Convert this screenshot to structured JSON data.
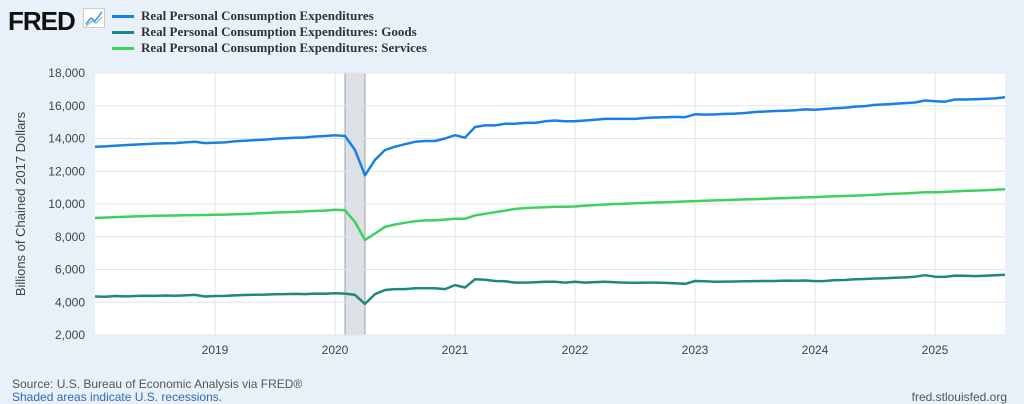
{
  "header": {
    "logo": "FRED",
    "logo_icon": "chart-line-icon"
  },
  "footer": {
    "source": "Source: U.S. Bureau of Economic Analysis via FRED®",
    "recession_note": "Shaded areas indicate U.S. recessions.",
    "site": "fred.stlouisfed.org"
  },
  "colors": {
    "total": "#1a80e4",
    "goods": "#1c8a7b",
    "services": "#3ed160",
    "recession": "#dde1e6"
  },
  "chart_data": {
    "type": "line",
    "title": "",
    "ylabel": "Billions of Chained 2017 Dollars",
    "ylim": [
      2000,
      18000
    ],
    "yticks": [
      "2,000",
      "4,000",
      "6,000",
      "8,000",
      "10,000",
      "12,000",
      "14,000",
      "16,000",
      "18,000"
    ],
    "ytick_values": [
      2000,
      4000,
      6000,
      8000,
      10000,
      12000,
      14000,
      16000,
      18000
    ],
    "xticks": [
      "2019",
      "2020",
      "2021",
      "2022",
      "2023",
      "2024",
      "2025"
    ],
    "x_start": "2018-01",
    "x_end": "2025-08",
    "frequency": "monthly",
    "recessions": [
      [
        "2020-02",
        "2020-04"
      ]
    ],
    "grid": true,
    "legend_placement": "top-left",
    "series": [
      {
        "name": "Real Personal Consumption Expenditures",
        "values": [
          13500,
          13520,
          13560,
          13600,
          13630,
          13660,
          13690,
          13710,
          13720,
          13760,
          13800,
          13720,
          13740,
          13760,
          13830,
          13860,
          13900,
          13930,
          13980,
          14020,
          14040,
          14060,
          14120,
          14150,
          14200,
          14150,
          13300,
          11750,
          12700,
          13300,
          13500,
          13650,
          13800,
          13850,
          13850,
          14000,
          14200,
          14050,
          14700,
          14800,
          14800,
          14900,
          14900,
          14950,
          14950,
          15050,
          15100,
          15050,
          15050,
          15100,
          15150,
          15200,
          15200,
          15200,
          15200,
          15250,
          15280,
          15300,
          15320,
          15300,
          15480,
          15460,
          15470,
          15500,
          15520,
          15560,
          15620,
          15650,
          15680,
          15700,
          15720,
          15780,
          15750,
          15800,
          15850,
          15880,
          15950,
          15980,
          16050,
          16080,
          16120,
          16160,
          16200,
          16320,
          16280,
          16250,
          16380,
          16380,
          16400,
          16420,
          16450,
          16520
        ]
      },
      {
        "name": "Real Personal Consumption Expenditures: Goods",
        "values": [
          4350,
          4340,
          4380,
          4360,
          4380,
          4400,
          4390,
          4410,
          4400,
          4420,
          4450,
          4350,
          4380,
          4390,
          4420,
          4440,
          4460,
          4470,
          4490,
          4500,
          4510,
          4500,
          4530,
          4520,
          4550,
          4530,
          4450,
          3900,
          4500,
          4750,
          4800,
          4800,
          4850,
          4850,
          4850,
          4800,
          5050,
          4900,
          5400,
          5380,
          5300,
          5280,
          5200,
          5200,
          5220,
          5250,
          5250,
          5200,
          5250,
          5200,
          5230,
          5250,
          5220,
          5200,
          5180,
          5200,
          5200,
          5180,
          5160,
          5120,
          5300,
          5280,
          5250,
          5260,
          5270,
          5280,
          5290,
          5300,
          5300,
          5320,
          5310,
          5330,
          5290,
          5300,
          5350,
          5360,
          5400,
          5420,
          5450,
          5460,
          5500,
          5520,
          5560,
          5650,
          5560,
          5550,
          5630,
          5620,
          5600,
          5620,
          5650,
          5680
        ]
      },
      {
        "name": "Real Personal Consumption Expenditures: Services",
        "values": [
          9150,
          9170,
          9200,
          9220,
          9240,
          9260,
          9280,
          9290,
          9300,
          9310,
          9320,
          9330,
          9340,
          9350,
          9370,
          9390,
          9420,
          9450,
          9480,
          9500,
          9520,
          9550,
          9580,
          9600,
          9650,
          9620,
          8900,
          7800,
          8200,
          8600,
          8750,
          8850,
          8950,
          9000,
          9000,
          9050,
          9100,
          9100,
          9300,
          9400,
          9500,
          9600,
          9700,
          9750,
          9780,
          9800,
          9830,
          9830,
          9850,
          9900,
          9930,
          9970,
          10000,
          10020,
          10050,
          10070,
          10090,
          10110,
          10130,
          10150,
          10180,
          10200,
          10220,
          10240,
          10260,
          10280,
          10300,
          10320,
          10340,
          10360,
          10380,
          10400,
          10420,
          10450,
          10470,
          10490,
          10510,
          10540,
          10570,
          10600,
          10620,
          10650,
          10680,
          10720,
          10720,
          10740,
          10770,
          10800,
          10820,
          10840,
          10870,
          10900
        ]
      }
    ]
  }
}
